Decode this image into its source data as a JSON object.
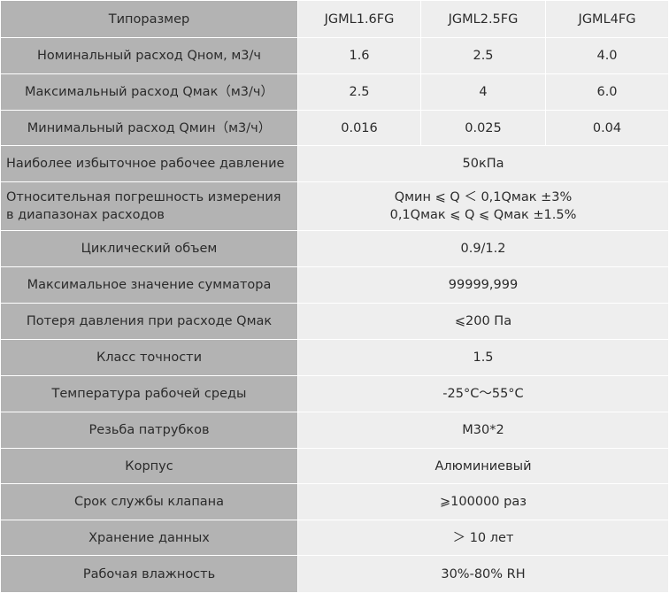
{
  "header": {
    "label": "Типоразмер",
    "models": [
      "JGML1.6FG",
      "JGML2.5FG",
      "JGML4FG"
    ]
  },
  "model_rows": [
    {
      "label": "Номинальный расход Qном, м3/ч",
      "values": [
        "1.6",
        "2.5",
        "4.0"
      ]
    },
    {
      "label": "Максимальный расход Qмак（м3/ч）",
      "values": [
        "2.5",
        "4",
        "6.0"
      ]
    },
    {
      "label": "Минимальный расход Qмин（м3/ч）",
      "values": [
        "0.016",
        "0.025",
        "0.04"
      ]
    }
  ],
  "pressure_row": {
    "label": "Наиболее избыточное рабочее давление",
    "value": "50кПа"
  },
  "error_row": {
    "label_lines": [
      "Относительная погрешность измерения",
      "в диапазонах расходов"
    ],
    "value_lines": [
      "Qмин ⩽ Q ＜ 0,1Qмак ±3%",
      "0,1Qмак ⩽ Q ⩽ Qмак  ±1.5%"
    ]
  },
  "common_rows": [
    {
      "label": "Циклический объем",
      "value": "0.9/1.2"
    },
    {
      "label": "Максимальное значение сумматора",
      "value": "99999,999"
    },
    {
      "label": "Потеря давления при расходе Qмак",
      "value": "⩽200 Па"
    },
    {
      "label": "Класс точности",
      "value": "1.5"
    },
    {
      "label": "Температура рабочей среды",
      "value": "-25°С～55°С"
    },
    {
      "label": "Резьба патрубков",
      "value": "M30*2"
    },
    {
      "label": "Корпус",
      "value": "Алюминиевый"
    },
    {
      "label": "Срок службы клапана",
      "value": "⩾100000 раз"
    },
    {
      "label": "Хранение данных",
      "value": "＞ 10 лет"
    },
    {
      "label": "Рабочая влажность",
      "value": "30%-80% RH"
    }
  ],
  "colors": {
    "label_bg": "#b3b3b3",
    "value_bg": "#eeeeee",
    "text": "#2b2b2b"
  }
}
